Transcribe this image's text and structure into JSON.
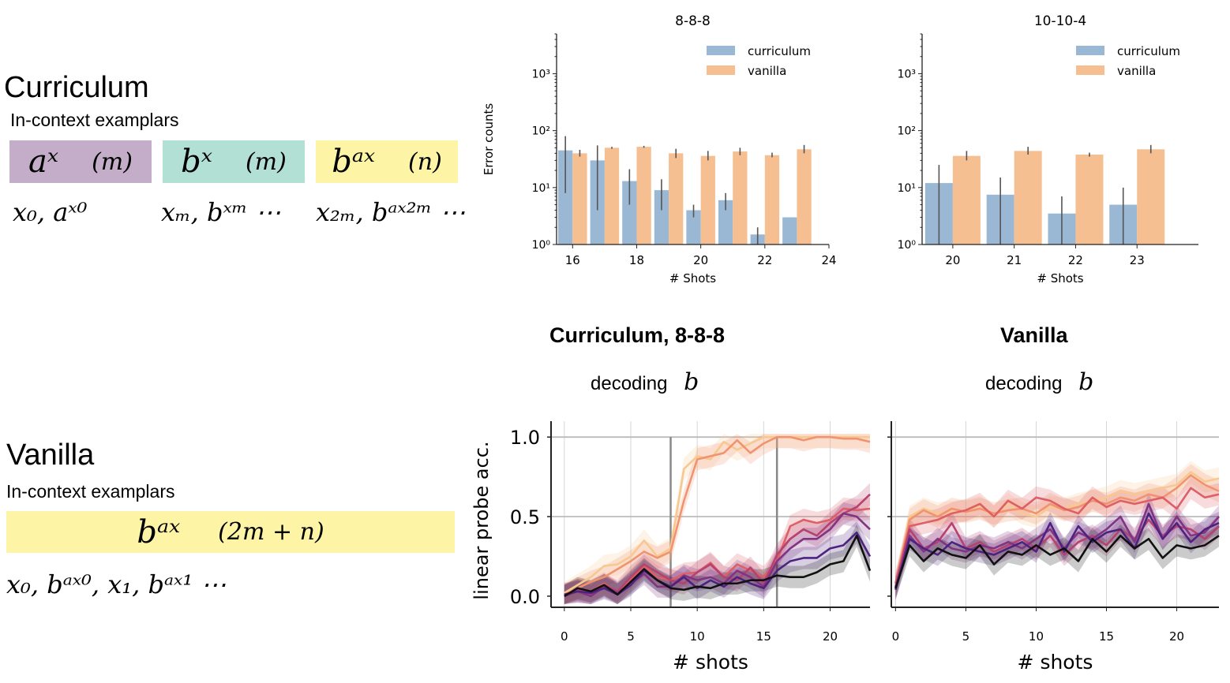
{
  "curriculum": {
    "heading": "Curriculum",
    "subheading": "In-context examplars",
    "boxes": [
      {
        "sym": "aˣ",
        "arg": "(m)",
        "color": "#c4adc8"
      },
      {
        "sym": "bˣ",
        "arg": "(m)",
        "color": "#b2e0d4"
      },
      {
        "sym": "bᵃˣ",
        "arg": "(n)",
        "color": "#fdf5a5"
      }
    ],
    "seq": [
      "x₀, aˣ⁰",
      "xₘ, bˣᵐ ⋯",
      "x₂ₘ, bᵃˣ²ᵐ ⋯"
    ]
  },
  "vanilla": {
    "heading": "Vanilla",
    "subheading": "In-context examplars",
    "box": {
      "sym": "bᵃˣ",
      "arg": "(2m + n)",
      "color": "#fdf5a5"
    },
    "seq": "x₀, bᵃˣ⁰, x₁, bᵃˣ¹ ⋯"
  },
  "colors": {
    "curriculum": "#9ab8d4",
    "vanilla": "#f6bf91",
    "error_bar": "#555555"
  },
  "chart_data": [
    {
      "type": "bar",
      "title": "8-8-8",
      "xlabel": "# Shots",
      "ylabel": "Error counts",
      "yscale": "log",
      "ylim": [
        1,
        5000
      ],
      "xlim": [
        15.5,
        24
      ],
      "xticks": [
        "16",
        "18",
        "20",
        "22",
        "24"
      ],
      "yticks": [
        "10⁰",
        "10¹",
        "10²",
        "10³"
      ],
      "legend": "top-right",
      "categories": [
        16,
        17,
        18,
        19,
        20,
        21,
        22,
        23
      ],
      "series": [
        {
          "name": "curriculum",
          "values": [
            45,
            30,
            13,
            9,
            4,
            6,
            1.5,
            3
          ],
          "err_low": [
            8,
            4,
            5,
            4,
            3,
            4,
            1,
            3
          ],
          "err_high": [
            80,
            55,
            21,
            14,
            5,
            8,
            2,
            3
          ]
        },
        {
          "name": "vanilla",
          "values": [
            40,
            50,
            52,
            40,
            36,
            43,
            37,
            47
          ],
          "err_low": [
            35,
            48,
            50,
            33,
            30,
            37,
            34,
            40
          ],
          "err_high": [
            46,
            52,
            54,
            48,
            44,
            50,
            41,
            56
          ]
        }
      ]
    },
    {
      "type": "bar",
      "title": "10-10-4",
      "xlabel": "# Shots",
      "ylabel": "",
      "yscale": "log",
      "ylim": [
        1,
        5000
      ],
      "xlim": [
        19.5,
        24
      ],
      "xticks": [
        "20",
        "21",
        "22",
        "23"
      ],
      "yticks": [
        "10⁰",
        "10¹",
        "10²",
        "10³"
      ],
      "legend": "top-right",
      "categories": [
        20,
        21,
        22,
        23
      ],
      "series": [
        {
          "name": "curriculum",
          "values": [
            12,
            7.5,
            3.5,
            5
          ],
          "err_low": [
            1,
            1,
            1,
            1
          ],
          "err_high": [
            25,
            15,
            7,
            10
          ]
        },
        {
          "name": "vanilla",
          "values": [
            36,
            44,
            38,
            47
          ],
          "err_low": [
            30,
            38,
            35,
            40
          ],
          "err_high": [
            44,
            52,
            41,
            56
          ]
        }
      ]
    },
    {
      "type": "line",
      "title": "Curriculum, 8-8-8",
      "subtitle": "decoding",
      "subtitle_var": "b",
      "xlabel": "# shots",
      "ylabel": "linear probe acc.",
      "xlim": [
        -1,
        23
      ],
      "ylim": [
        -0.07,
        1.1
      ],
      "xticks": [
        0,
        5,
        10,
        15,
        20
      ],
      "yticks": [
        "0.0",
        "0.5",
        "1.0"
      ],
      "vlines": [
        8,
        16
      ],
      "series": [
        {
          "color": "#f7c890",
          "values": [
            0.02,
            0.07,
            0.12,
            0.19,
            0.2,
            0.25,
            0.35,
            0.25,
            0.3,
            0.8,
            0.88,
            0.86,
            0.97,
            0.92,
            0.96,
            1,
            1,
            1,
            1,
            1,
            1,
            1,
            1,
            1
          ]
        },
        {
          "color": "#f1936f",
          "values": [
            0.01,
            0.05,
            0.09,
            0.12,
            0.17,
            0.22,
            0.28,
            0.24,
            0.28,
            0.6,
            0.86,
            0.88,
            0.9,
            0.98,
            0.9,
            0.96,
            1,
            1,
            0.98,
            1,
            1,
            0.99,
            0.99,
            0.97
          ]
        },
        {
          "color": "#de5f65",
          "values": [
            0.01,
            0.04,
            0.03,
            0.08,
            0.02,
            0.1,
            0.19,
            0.12,
            0.1,
            0.14,
            0.15,
            0.21,
            0.12,
            0.2,
            0.16,
            0.12,
            0.22,
            0.44,
            0.48,
            0.46,
            0.48,
            0.55,
            0.54,
            0.55
          ]
        },
        {
          "color": "#b7416f",
          "values": [
            0,
            0.04,
            0.01,
            0.07,
            0.03,
            0.12,
            0.2,
            0.15,
            0.1,
            0.08,
            0.15,
            0.2,
            0.12,
            0.1,
            0.18,
            0.08,
            0.26,
            0.36,
            0.42,
            0.38,
            0.46,
            0.52,
            0.56,
            0.64
          ]
        },
        {
          "color": "#813484",
          "values": [
            0,
            0.03,
            0,
            0.06,
            0.02,
            0.08,
            0.14,
            0.06,
            0.06,
            0.13,
            0.1,
            0.12,
            0.08,
            0.16,
            0.12,
            0.06,
            0.22,
            0.3,
            0.36,
            0.36,
            0.42,
            0.52,
            0.5,
            0.42
          ]
        },
        {
          "color": "#4d2380",
          "values": [
            0.01,
            0.03,
            0.02,
            0.05,
            0.01,
            0.07,
            0.16,
            0.1,
            0.06,
            0.12,
            0.05,
            0.1,
            0.06,
            0.12,
            0.08,
            0.05,
            0.16,
            0.22,
            0.24,
            0.24,
            0.3,
            0.32,
            0.4,
            0.25
          ]
        },
        {
          "color": "#111111",
          "values": [
            0,
            0.05,
            0.03,
            0.07,
            0.01,
            0.09,
            0.17,
            0.1,
            0.05,
            0.04,
            0.06,
            0.05,
            0.08,
            0.08,
            0.1,
            0.1,
            0.13,
            0.12,
            0.12,
            0.15,
            0.2,
            0.22,
            0.38,
            0.16
          ]
        }
      ]
    },
    {
      "type": "line",
      "title": "Vanilla",
      "subtitle": "decoding",
      "subtitle_var": "b",
      "xlabel": "# shots",
      "ylabel": "",
      "xlim": [
        -0.3,
        23
      ],
      "ylim": [
        -0.07,
        1.1
      ],
      "xticks": [
        0,
        5,
        10,
        15,
        20
      ],
      "yticks": [],
      "vlines": [],
      "series": [
        {
          "color": "#f7c890",
          "values": [
            0.05,
            0.5,
            0.55,
            0.52,
            0.53,
            0.54,
            0.56,
            0.5,
            0.58,
            0.52,
            0.5,
            0.56,
            0.55,
            0.58,
            0.6,
            0.62,
            0.66,
            0.64,
            0.66,
            0.68,
            0.7,
            0.78,
            0.72,
            0.74
          ]
        },
        {
          "color": "#f1936f",
          "values": [
            0.08,
            0.48,
            0.54,
            0.5,
            0.55,
            0.53,
            0.55,
            0.52,
            0.54,
            0.55,
            0.52,
            0.58,
            0.54,
            0.56,
            0.6,
            0.58,
            0.62,
            0.6,
            0.64,
            0.62,
            0.68,
            0.76,
            0.7,
            0.66
          ]
        },
        {
          "color": "#de5f65",
          "values": [
            0.08,
            0.44,
            0.46,
            0.48,
            0.52,
            0.54,
            0.58,
            0.5,
            0.6,
            0.55,
            0.62,
            0.6,
            0.55,
            0.52,
            0.62,
            0.56,
            0.6,
            0.58,
            0.6,
            0.62,
            0.55,
            0.68,
            0.62,
            0.64
          ]
        },
        {
          "color": "#b7416f",
          "values": [
            0.06,
            0.42,
            0.3,
            0.34,
            0.46,
            0.3,
            0.34,
            0.28,
            0.32,
            0.36,
            0.3,
            0.38,
            0.26,
            0.34,
            0.38,
            0.32,
            0.42,
            0.36,
            0.48,
            0.38,
            0.44,
            0.42,
            0.36,
            0.44
          ]
        },
        {
          "color": "#813484",
          "values": [
            0.05,
            0.38,
            0.28,
            0.36,
            0.3,
            0.28,
            0.32,
            0.3,
            0.34,
            0.3,
            0.36,
            0.42,
            0.3,
            0.4,
            0.36,
            0.42,
            0.5,
            0.34,
            0.58,
            0.36,
            0.5,
            0.38,
            0.4,
            0.5
          ]
        },
        {
          "color": "#4d2380",
          "values": [
            0.04,
            0.36,
            0.3,
            0.26,
            0.34,
            0.3,
            0.28,
            0.26,
            0.3,
            0.34,
            0.28,
            0.46,
            0.28,
            0.44,
            0.34,
            0.4,
            0.42,
            0.3,
            0.52,
            0.36,
            0.46,
            0.34,
            0.42,
            0.46
          ]
        },
        {
          "color": "#111111",
          "values": [
            0.05,
            0.32,
            0.22,
            0.3,
            0.26,
            0.24,
            0.32,
            0.2,
            0.28,
            0.26,
            0.32,
            0.26,
            0.3,
            0.22,
            0.36,
            0.28,
            0.38,
            0.3,
            0.36,
            0.24,
            0.32,
            0.3,
            0.32,
            0.38
          ]
        }
      ]
    }
  ]
}
